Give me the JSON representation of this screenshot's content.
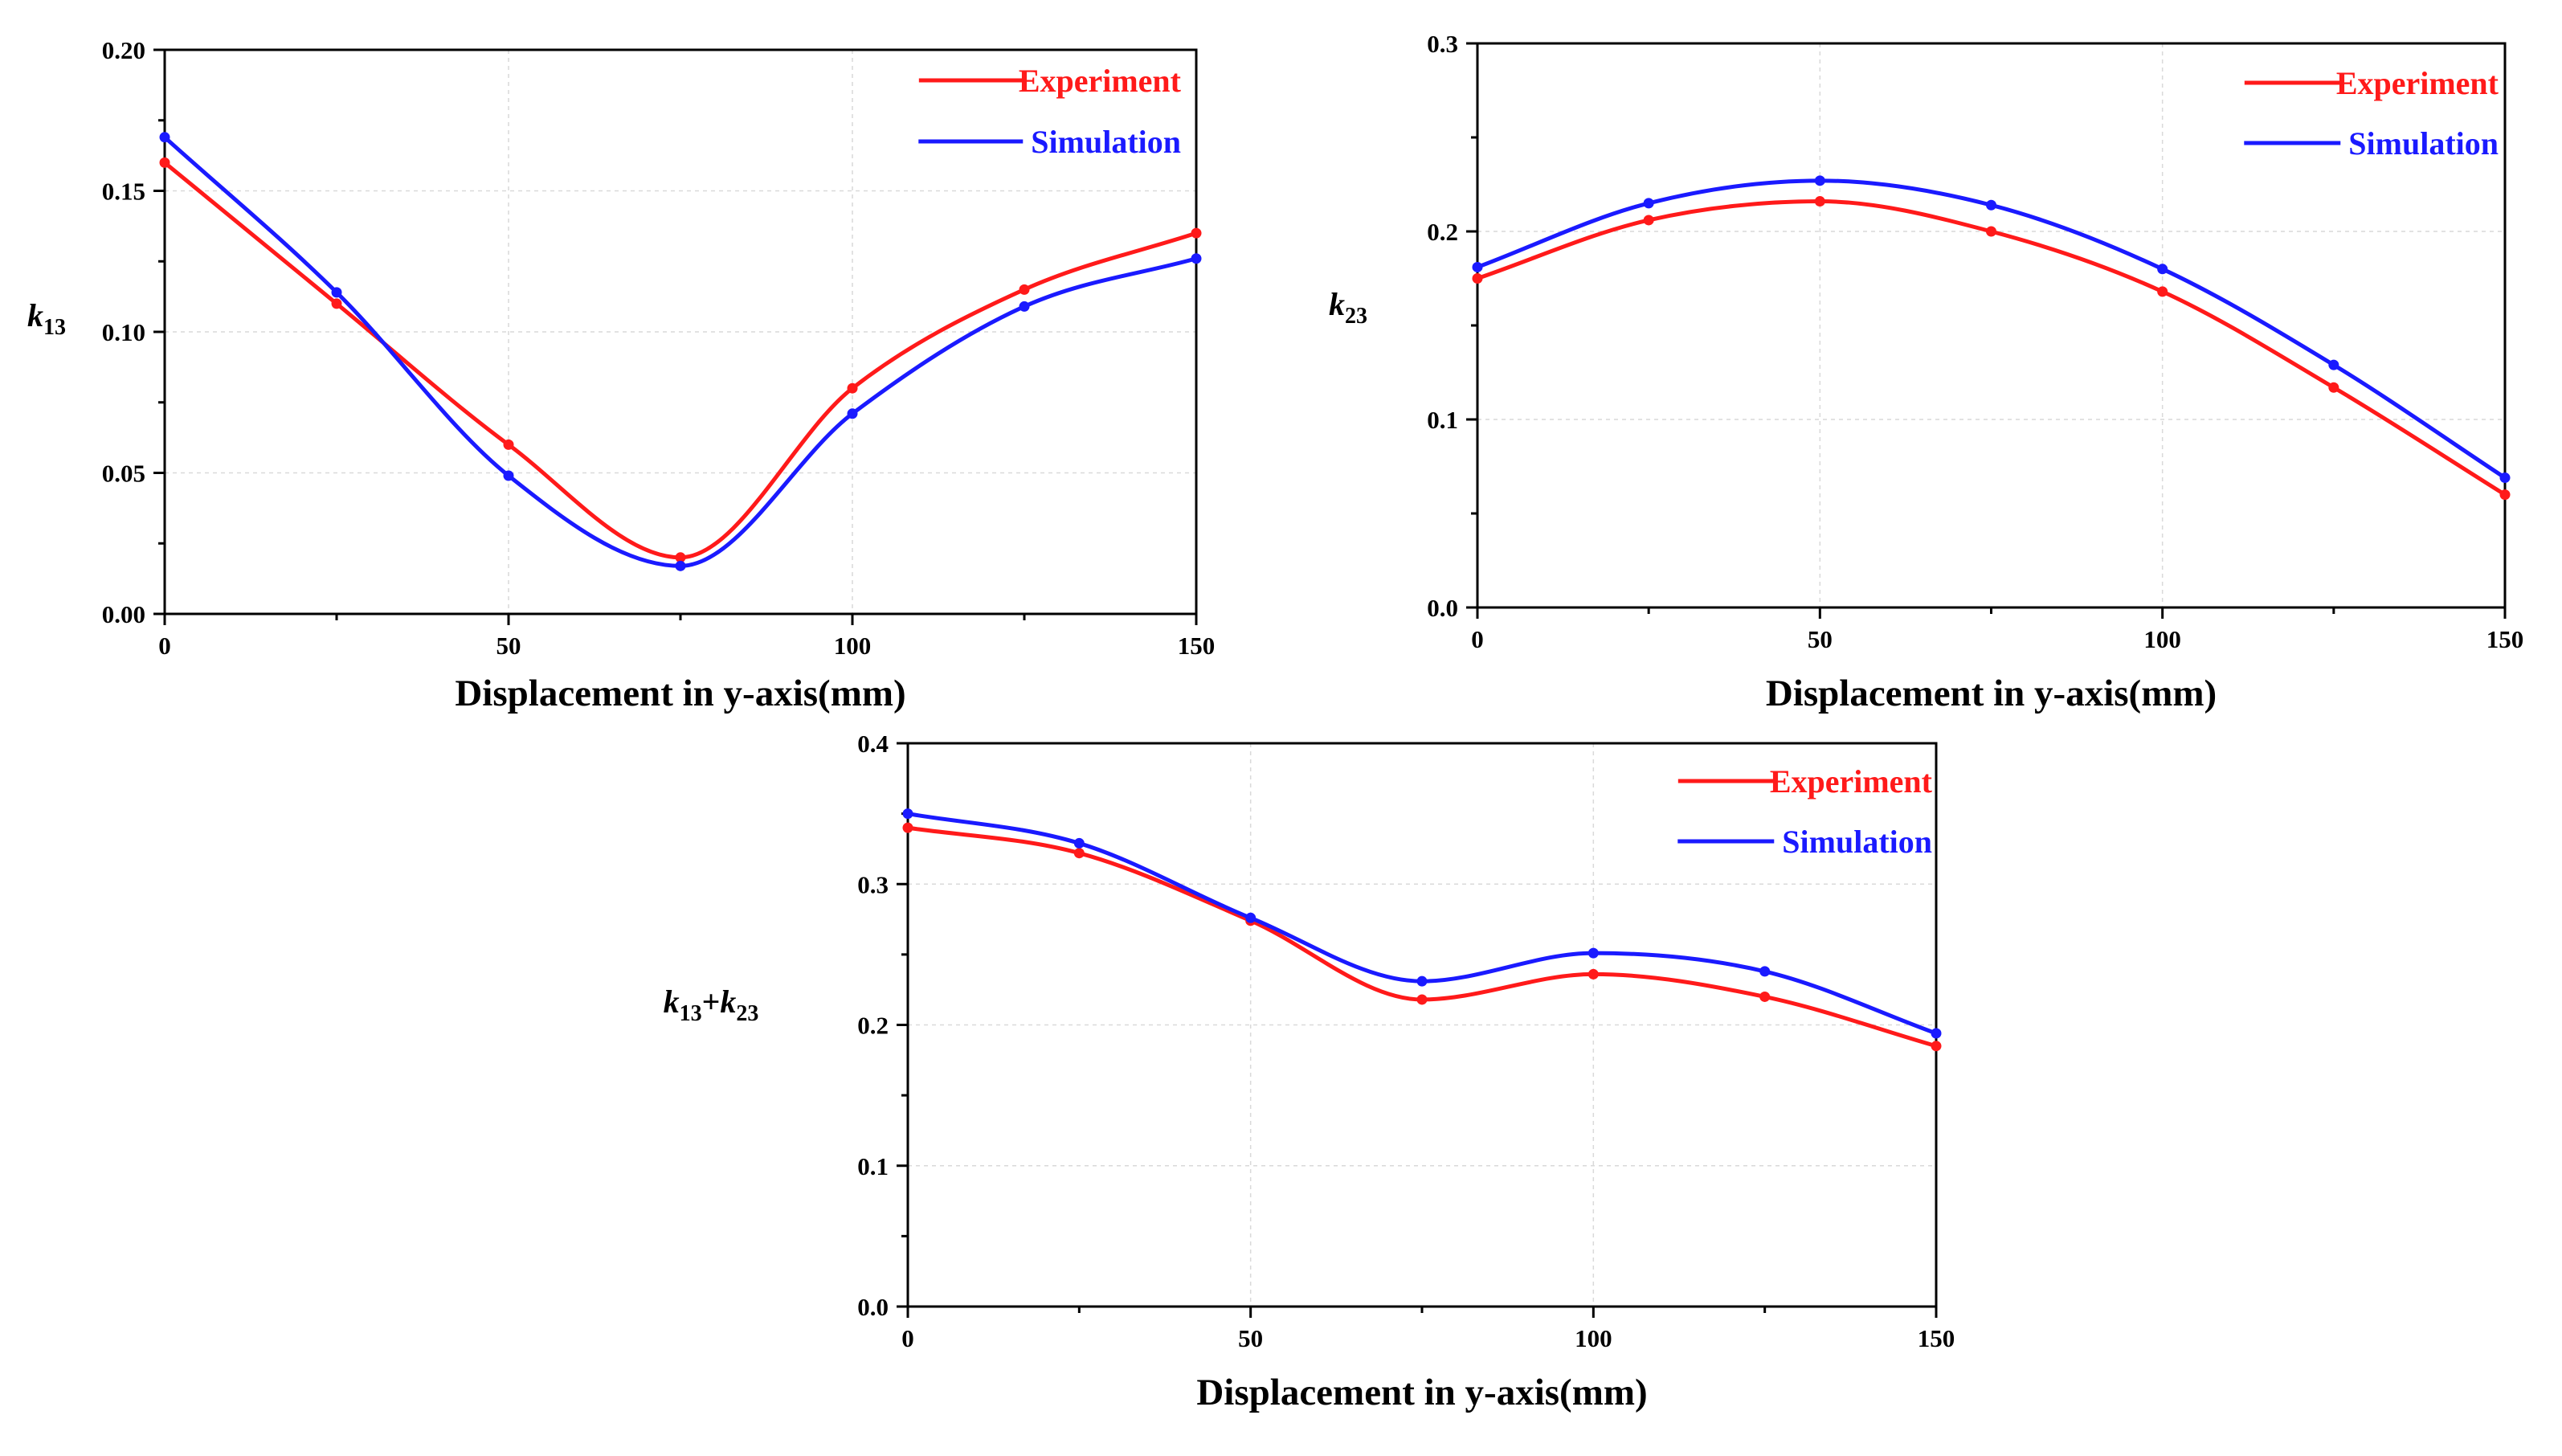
{
  "colors": {
    "experiment": "#ff1a1a",
    "simulation": "#1a1aff",
    "axis": "#000000",
    "grid": "#d9d9d9"
  },
  "chart_data": [
    {
      "type": "line",
      "id": "k13",
      "ylabel_main": "k",
      "ylabel_sub": "13",
      "xlabel": "Displacement in y-axis(mm)",
      "xlim": [
        0,
        150
      ],
      "ylim": [
        0,
        0.2
      ],
      "xticks": [
        0,
        50,
        100,
        150
      ],
      "xtick_labels": [
        "0",
        "50",
        "100",
        "150"
      ],
      "yticks": [
        0,
        0.05,
        0.1,
        0.15,
        0.2
      ],
      "ytick_labels": [
        "0.00",
        "0.05",
        "0.10",
        "0.15",
        "0.20"
      ],
      "x": [
        0,
        25,
        50,
        75,
        100,
        125,
        150
      ],
      "series": [
        {
          "name": "Experiment",
          "color_key": "experiment",
          "values": [
            0.16,
            0.11,
            0.06,
            0.02,
            0.08,
            0.115,
            0.135
          ]
        },
        {
          "name": "Simulation",
          "color_key": "simulation",
          "values": [
            0.169,
            0.114,
            0.049,
            0.017,
            0.071,
            0.109,
            0.126
          ]
        }
      ],
      "legend": "top-right"
    },
    {
      "type": "line",
      "id": "k23",
      "ylabel_main": "k",
      "ylabel_sub": "23",
      "xlabel": "Displacement in y-axis(mm)",
      "xlim": [
        0,
        150
      ],
      "ylim": [
        0,
        0.3
      ],
      "xticks": [
        0,
        50,
        100,
        150
      ],
      "xtick_labels": [
        "0",
        "50",
        "100",
        "150"
      ],
      "yticks": [
        0,
        0.1,
        0.2,
        0.3
      ],
      "ytick_labels": [
        "0.0",
        "0.1",
        "0.2",
        "0.3"
      ],
      "x": [
        0,
        25,
        50,
        75,
        100,
        125,
        150
      ],
      "series": [
        {
          "name": "Experiment",
          "color_key": "experiment",
          "values": [
            0.175,
            0.206,
            0.216,
            0.2,
            0.168,
            0.117,
            0.06
          ]
        },
        {
          "name": "Simulation",
          "color_key": "simulation",
          "values": [
            0.181,
            0.215,
            0.227,
            0.214,
            0.18,
            0.129,
            0.069
          ]
        }
      ],
      "legend": "top-right"
    },
    {
      "type": "line",
      "id": "k13-plus-k23",
      "ylabel_main": "k",
      "ylabel_sub": "13",
      "ylabel_plus": "+",
      "ylabel_main2": "k",
      "ylabel_sub2": "23",
      "xlabel": "Displacement in y-axis(mm)",
      "xlim": [
        0,
        150
      ],
      "ylim": [
        0,
        0.4
      ],
      "xticks": [
        0,
        50,
        100,
        150
      ],
      "xtick_labels": [
        "0",
        "50",
        "100",
        "150"
      ],
      "yticks": [
        0,
        0.1,
        0.2,
        0.3,
        0.4
      ],
      "ytick_labels": [
        "0.0",
        "0.1",
        "0.2",
        "0.3",
        "0.4"
      ],
      "x": [
        0,
        25,
        50,
        75,
        100,
        125,
        150
      ],
      "series": [
        {
          "name": "Experiment",
          "color_key": "experiment",
          "values": [
            0.34,
            0.322,
            0.274,
            0.218,
            0.236,
            0.22,
            0.185
          ]
        },
        {
          "name": "Simulation",
          "color_key": "simulation",
          "values": [
            0.35,
            0.329,
            0.276,
            0.231,
            0.251,
            0.238,
            0.194
          ]
        }
      ],
      "legend": "top-right"
    }
  ]
}
